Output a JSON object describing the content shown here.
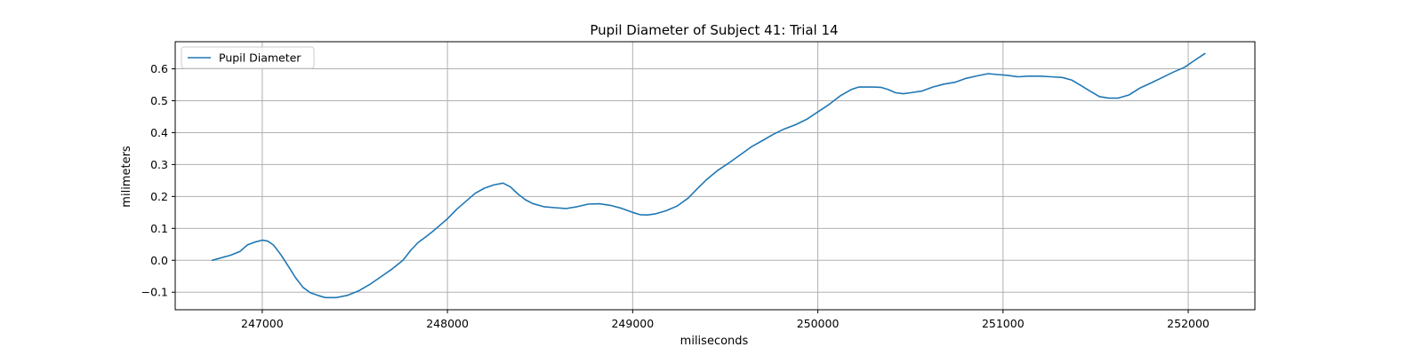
{
  "chart_data": {
    "type": "line",
    "title": "Pupil Diameter of Subject 41: Trial 14",
    "xlabel": "miliseconds",
    "ylabel": "milimeters",
    "xlim": [
      246530,
      252360
    ],
    "ylim": [
      -0.155,
      0.685
    ],
    "xticks": [
      247000,
      248000,
      249000,
      250000,
      251000,
      252000
    ],
    "xtick_labels": [
      "247000",
      "248000",
      "249000",
      "250000",
      "251000",
      "252000"
    ],
    "yticks": [
      -0.1,
      0.0,
      0.1,
      0.2,
      0.3,
      0.4,
      0.5,
      0.6
    ],
    "ytick_labels": [
      "−0.1",
      "0.0",
      "0.1",
      "0.2",
      "0.3",
      "0.4",
      "0.5",
      "0.6"
    ],
    "grid": true,
    "legend": {
      "placement": "top-left",
      "entries": [
        "Pupil Diameter"
      ]
    },
    "colors": {
      "series": "#1f77b4",
      "grid": "#b0b0b0",
      "axes": "#000000"
    },
    "series": [
      {
        "name": "Pupil Diameter",
        "x": [
          246730,
          246780,
          246830,
          246880,
          246920,
          246960,
          247000,
          247030,
          247060,
          247100,
          247140,
          247180,
          247220,
          247260,
          247300,
          247340,
          247400,
          247460,
          247520,
          247580,
          247640,
          247700,
          247760,
          247800,
          247840,
          247880,
          247920,
          247960,
          248000,
          248050,
          248100,
          248150,
          248200,
          248250,
          248300,
          248340,
          248380,
          248420,
          248460,
          248520,
          248580,
          248640,
          248700,
          248760,
          248820,
          248880,
          248940,
          249000,
          249040,
          249080,
          249120,
          249180,
          249240,
          249300,
          249350,
          249400,
          249460,
          249520,
          249580,
          249640,
          249700,
          249760,
          249820,
          249880,
          249940,
          250000,
          250060,
          250120,
          250180,
          250220,
          250260,
          250300,
          250340,
          250380,
          250420,
          250460,
          250500,
          250560,
          250620,
          250680,
          250740,
          250800,
          250860,
          250920,
          250970,
          251020,
          251080,
          251140,
          251200,
          251260,
          251320,
          251370,
          251420,
          251470,
          251520,
          251570,
          251620,
          251680,
          251740,
          251800,
          251860,
          251920,
          251980,
          252030,
          252090
        ],
        "values": [
          0.0,
          0.008,
          0.016,
          0.028,
          0.048,
          0.057,
          0.063,
          0.06,
          0.048,
          0.018,
          -0.018,
          -0.055,
          -0.085,
          -0.102,
          -0.11,
          -0.117,
          -0.117,
          -0.11,
          -0.096,
          -0.076,
          -0.052,
          -0.028,
          0.0,
          0.03,
          0.055,
          0.072,
          0.09,
          0.11,
          0.13,
          0.16,
          0.185,
          0.21,
          0.226,
          0.236,
          0.242,
          0.23,
          0.208,
          0.19,
          0.178,
          0.168,
          0.165,
          0.162,
          0.168,
          0.176,
          0.177,
          0.172,
          0.163,
          0.15,
          0.143,
          0.142,
          0.145,
          0.155,
          0.17,
          0.195,
          0.225,
          0.253,
          0.282,
          0.305,
          0.33,
          0.355,
          0.375,
          0.395,
          0.412,
          0.425,
          0.442,
          0.465,
          0.488,
          0.515,
          0.535,
          0.543,
          0.543,
          0.543,
          0.542,
          0.535,
          0.525,
          0.522,
          0.525,
          0.53,
          0.543,
          0.552,
          0.558,
          0.57,
          0.578,
          0.585,
          0.582,
          0.58,
          0.575,
          0.577,
          0.577,
          0.575,
          0.573,
          0.565,
          0.548,
          0.53,
          0.513,
          0.508,
          0.508,
          0.518,
          0.54,
          0.556,
          0.573,
          0.59,
          0.605,
          0.625,
          0.648
        ]
      }
    ]
  }
}
